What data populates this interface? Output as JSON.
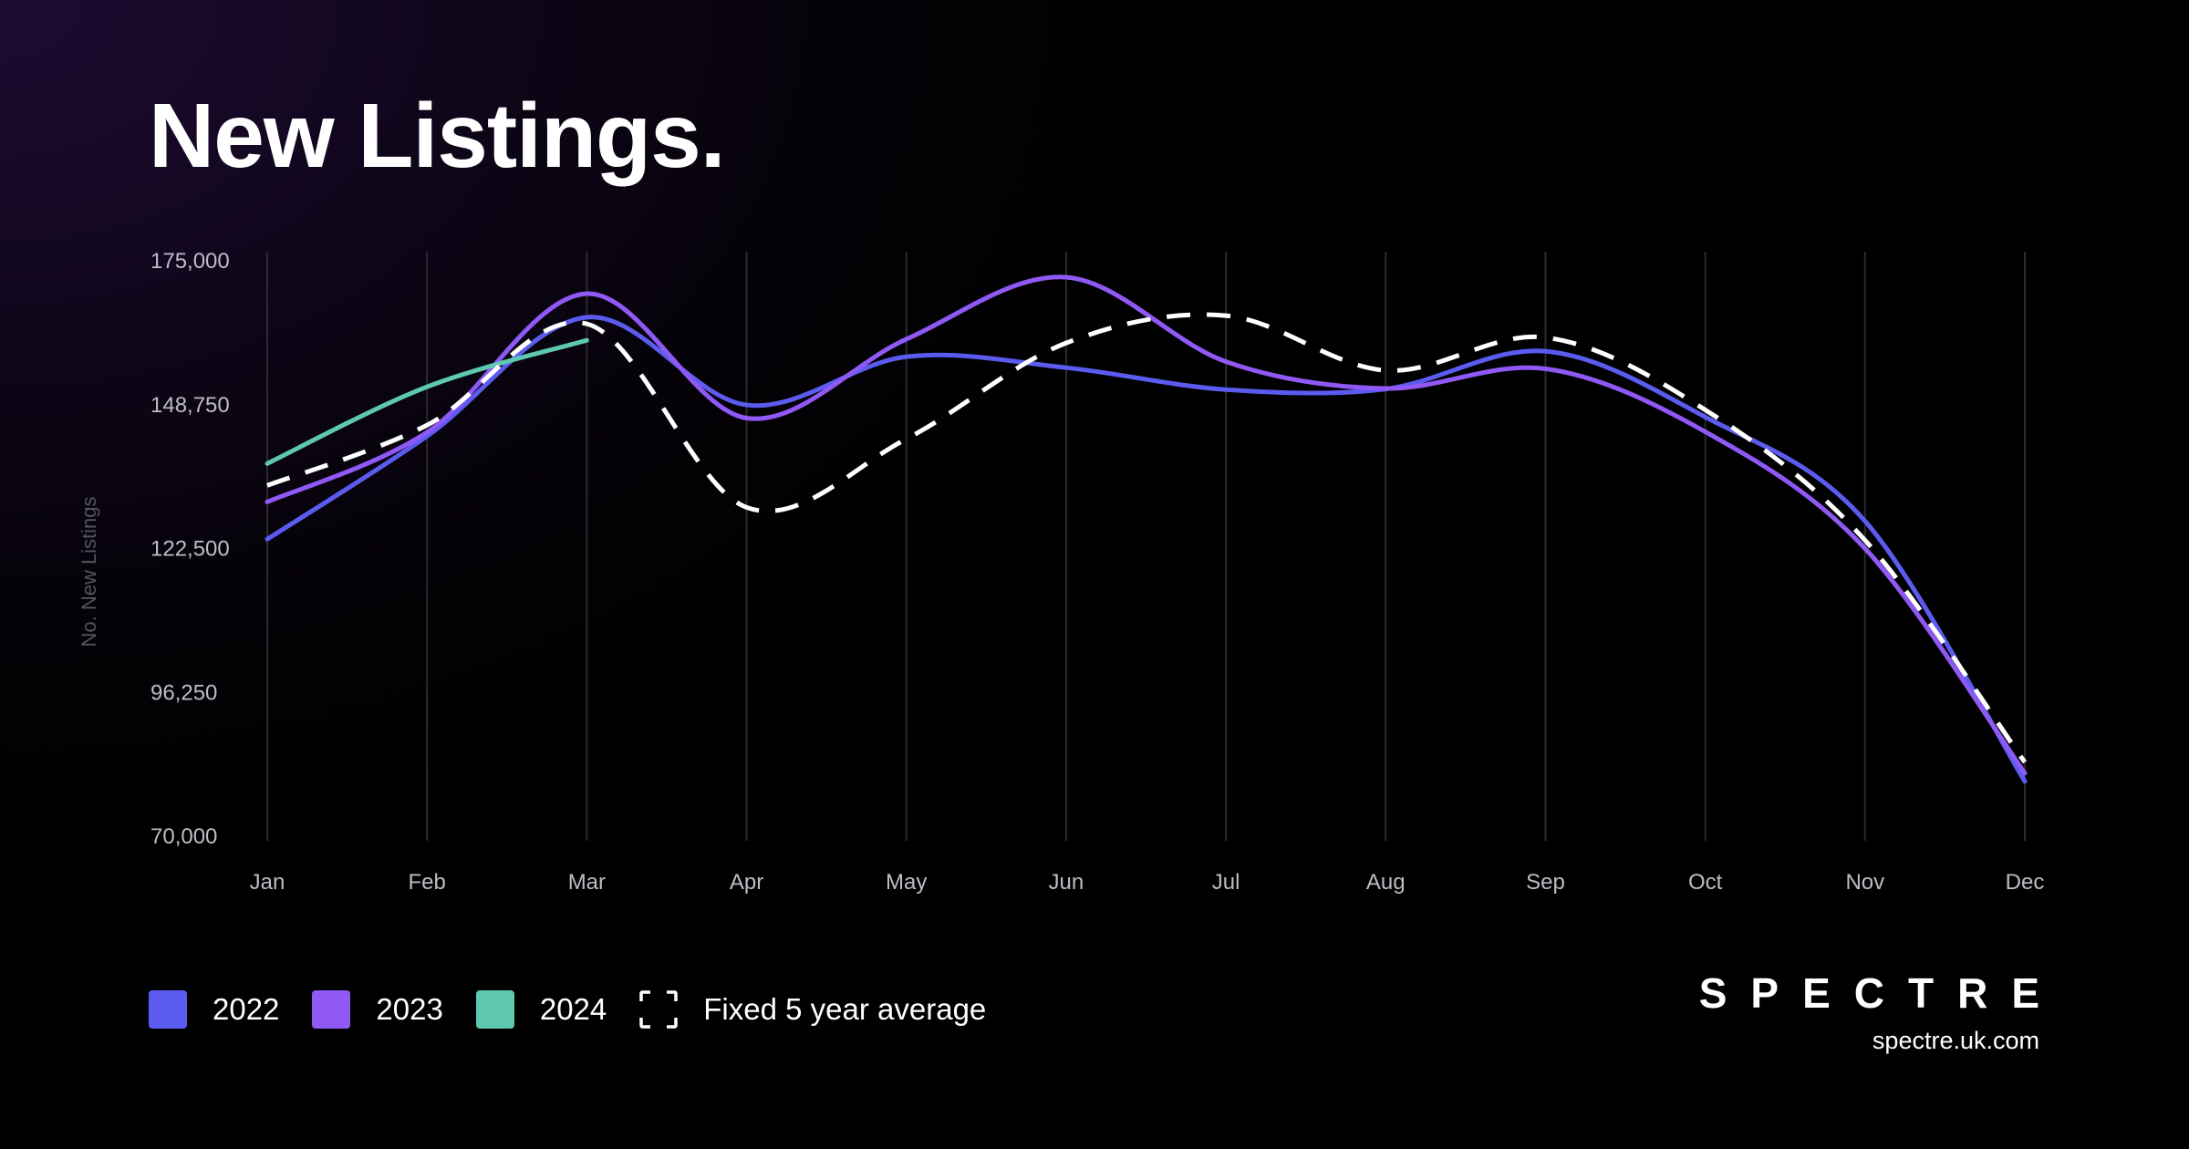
{
  "title": "New Listings.",
  "colors": {
    "2022": "#5b5bf0",
    "2023": "#9058f5",
    "2024": "#5ec8b0",
    "average": "#ffffff",
    "grid": "#2a2a30"
  },
  "chart_data": {
    "type": "line",
    "title": "New Listings.",
    "xlabel": "",
    "ylabel": "No. New Listings",
    "categories": [
      "Jan",
      "Feb",
      "Mar",
      "Apr",
      "May",
      "Jun",
      "Jul",
      "Aug",
      "Sep",
      "Oct",
      "Nov",
      "Dec"
    ],
    "yticks": [
      "175,000",
      "148,750",
      "122,500",
      "96,250",
      "70,000"
    ],
    "ylim": [
      70000,
      175000
    ],
    "grid": "vertical",
    "legend_position": "bottom-left",
    "series": [
      {
        "name": "2022",
        "key": "2022",
        "dashed": false,
        "values": [
          124200,
          143000,
          164700,
          148700,
          157500,
          155500,
          151500,
          151600,
          158500,
          146500,
          127500,
          80000
        ]
      },
      {
        "name": "2023",
        "key": "2023",
        "dashed": false,
        "values": [
          131000,
          143700,
          169000,
          146300,
          160700,
          172000,
          156600,
          151700,
          155300,
          143800,
          122500,
          81500
        ]
      },
      {
        "name": "2024",
        "key": "2024",
        "dashed": false,
        "values": [
          138000,
          152000,
          160500,
          null,
          null,
          null,
          null,
          null,
          null,
          null,
          null,
          null
        ]
      },
      {
        "name": "Fixed 5 year average",
        "key": "average",
        "dashed": true,
        "values": [
          134000,
          145000,
          163500,
          130000,
          142500,
          160000,
          165000,
          155000,
          161000,
          147800,
          124000,
          83500
        ]
      }
    ]
  },
  "legend": [
    {
      "label": "2022",
      "key": "2022"
    },
    {
      "label": "2023",
      "key": "2023"
    },
    {
      "label": "2024",
      "key": "2024"
    },
    {
      "label": "Fixed 5 year average",
      "key": "average"
    }
  ],
  "brand": {
    "logo": "SPECTRE",
    "url": "spectre.uk.com"
  }
}
